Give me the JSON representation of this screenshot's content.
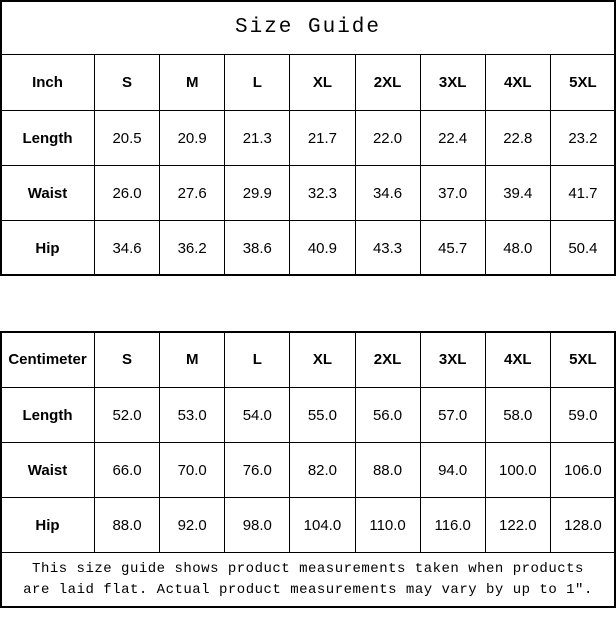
{
  "title": "Size Guide",
  "tables": {
    "inch": {
      "unit_label": "Inch",
      "sizes": [
        "S",
        "M",
        "L",
        "XL",
        "2XL",
        "3XL",
        "4XL",
        "5XL"
      ],
      "rows": [
        {
          "label": "Length",
          "values": [
            "20.5",
            "20.9",
            "21.3",
            "21.7",
            "22.0",
            "22.4",
            "22.8",
            "23.2"
          ]
        },
        {
          "label": "Waist",
          "values": [
            "26.0",
            "27.6",
            "29.9",
            "32.3",
            "34.6",
            "37.0",
            "39.4",
            "41.7"
          ]
        },
        {
          "label": "Hip",
          "values": [
            "34.6",
            "36.2",
            "38.6",
            "40.9",
            "43.3",
            "45.7",
            "48.0",
            "50.4"
          ]
        }
      ]
    },
    "centimeter": {
      "unit_label": "Centimeter",
      "sizes": [
        "S",
        "M",
        "L",
        "XL",
        "2XL",
        "3XL",
        "4XL",
        "5XL"
      ],
      "rows": [
        {
          "label": "Length",
          "values": [
            "52.0",
            "53.0",
            "54.0",
            "55.0",
            "56.0",
            "57.0",
            "58.0",
            "59.0"
          ]
        },
        {
          "label": "Waist",
          "values": [
            "66.0",
            "70.0",
            "76.0",
            "82.0",
            "88.0",
            "94.0",
            "100.0",
            "106.0"
          ]
        },
        {
          "label": "Hip",
          "values": [
            "88.0",
            "92.0",
            "98.0",
            "104.0",
            "110.0",
            "116.0",
            "122.0",
            "128.0"
          ]
        }
      ]
    }
  },
  "footnote": {
    "line1": "This size guide shows product measurements taken when products",
    "line2": "are laid flat. Actual product measurements may vary by up to 1″."
  },
  "colors": {
    "background": "#ffffff",
    "border": "#000000",
    "text": "#000000"
  }
}
